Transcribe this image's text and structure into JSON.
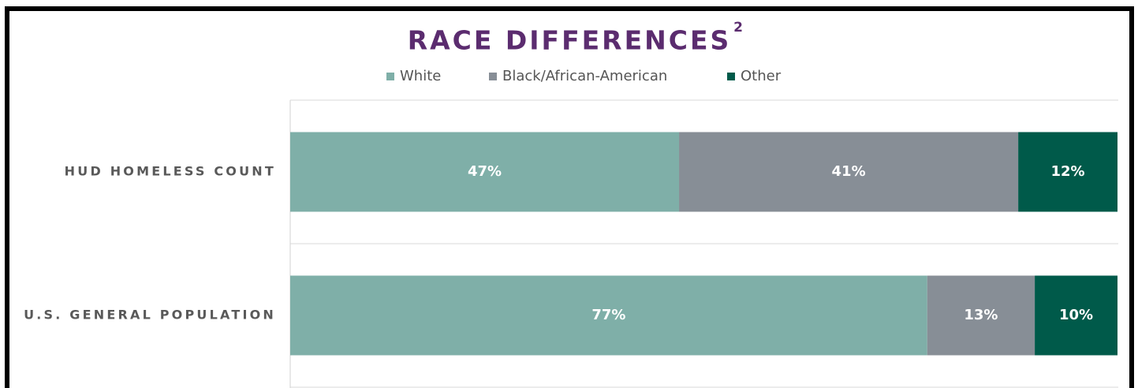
{
  "chart_data": {
    "type": "stacked_bar_horizontal",
    "title": "RACE DIFFERENCES",
    "title_superscript": "2",
    "categories": [
      "HUD HOMELESS COUNT",
      "U.S. GENERAL POPULATION"
    ],
    "xlim": [
      0,
      100
    ],
    "legend": "top",
    "series": [
      {
        "name": "White",
        "color": "#7fafa8",
        "values": [
          47,
          77
        ],
        "value_labels": [
          "47%",
          "77%"
        ]
      },
      {
        "name": "Black/African-American",
        "color": "#878e96",
        "values": [
          41,
          13
        ],
        "value_labels": [
          "41%",
          "13%"
        ]
      },
      {
        "name": "Other",
        "color": "#005a4a",
        "values": [
          12,
          10
        ],
        "value_labels": [
          "12%",
          "10%"
        ]
      }
    ]
  }
}
